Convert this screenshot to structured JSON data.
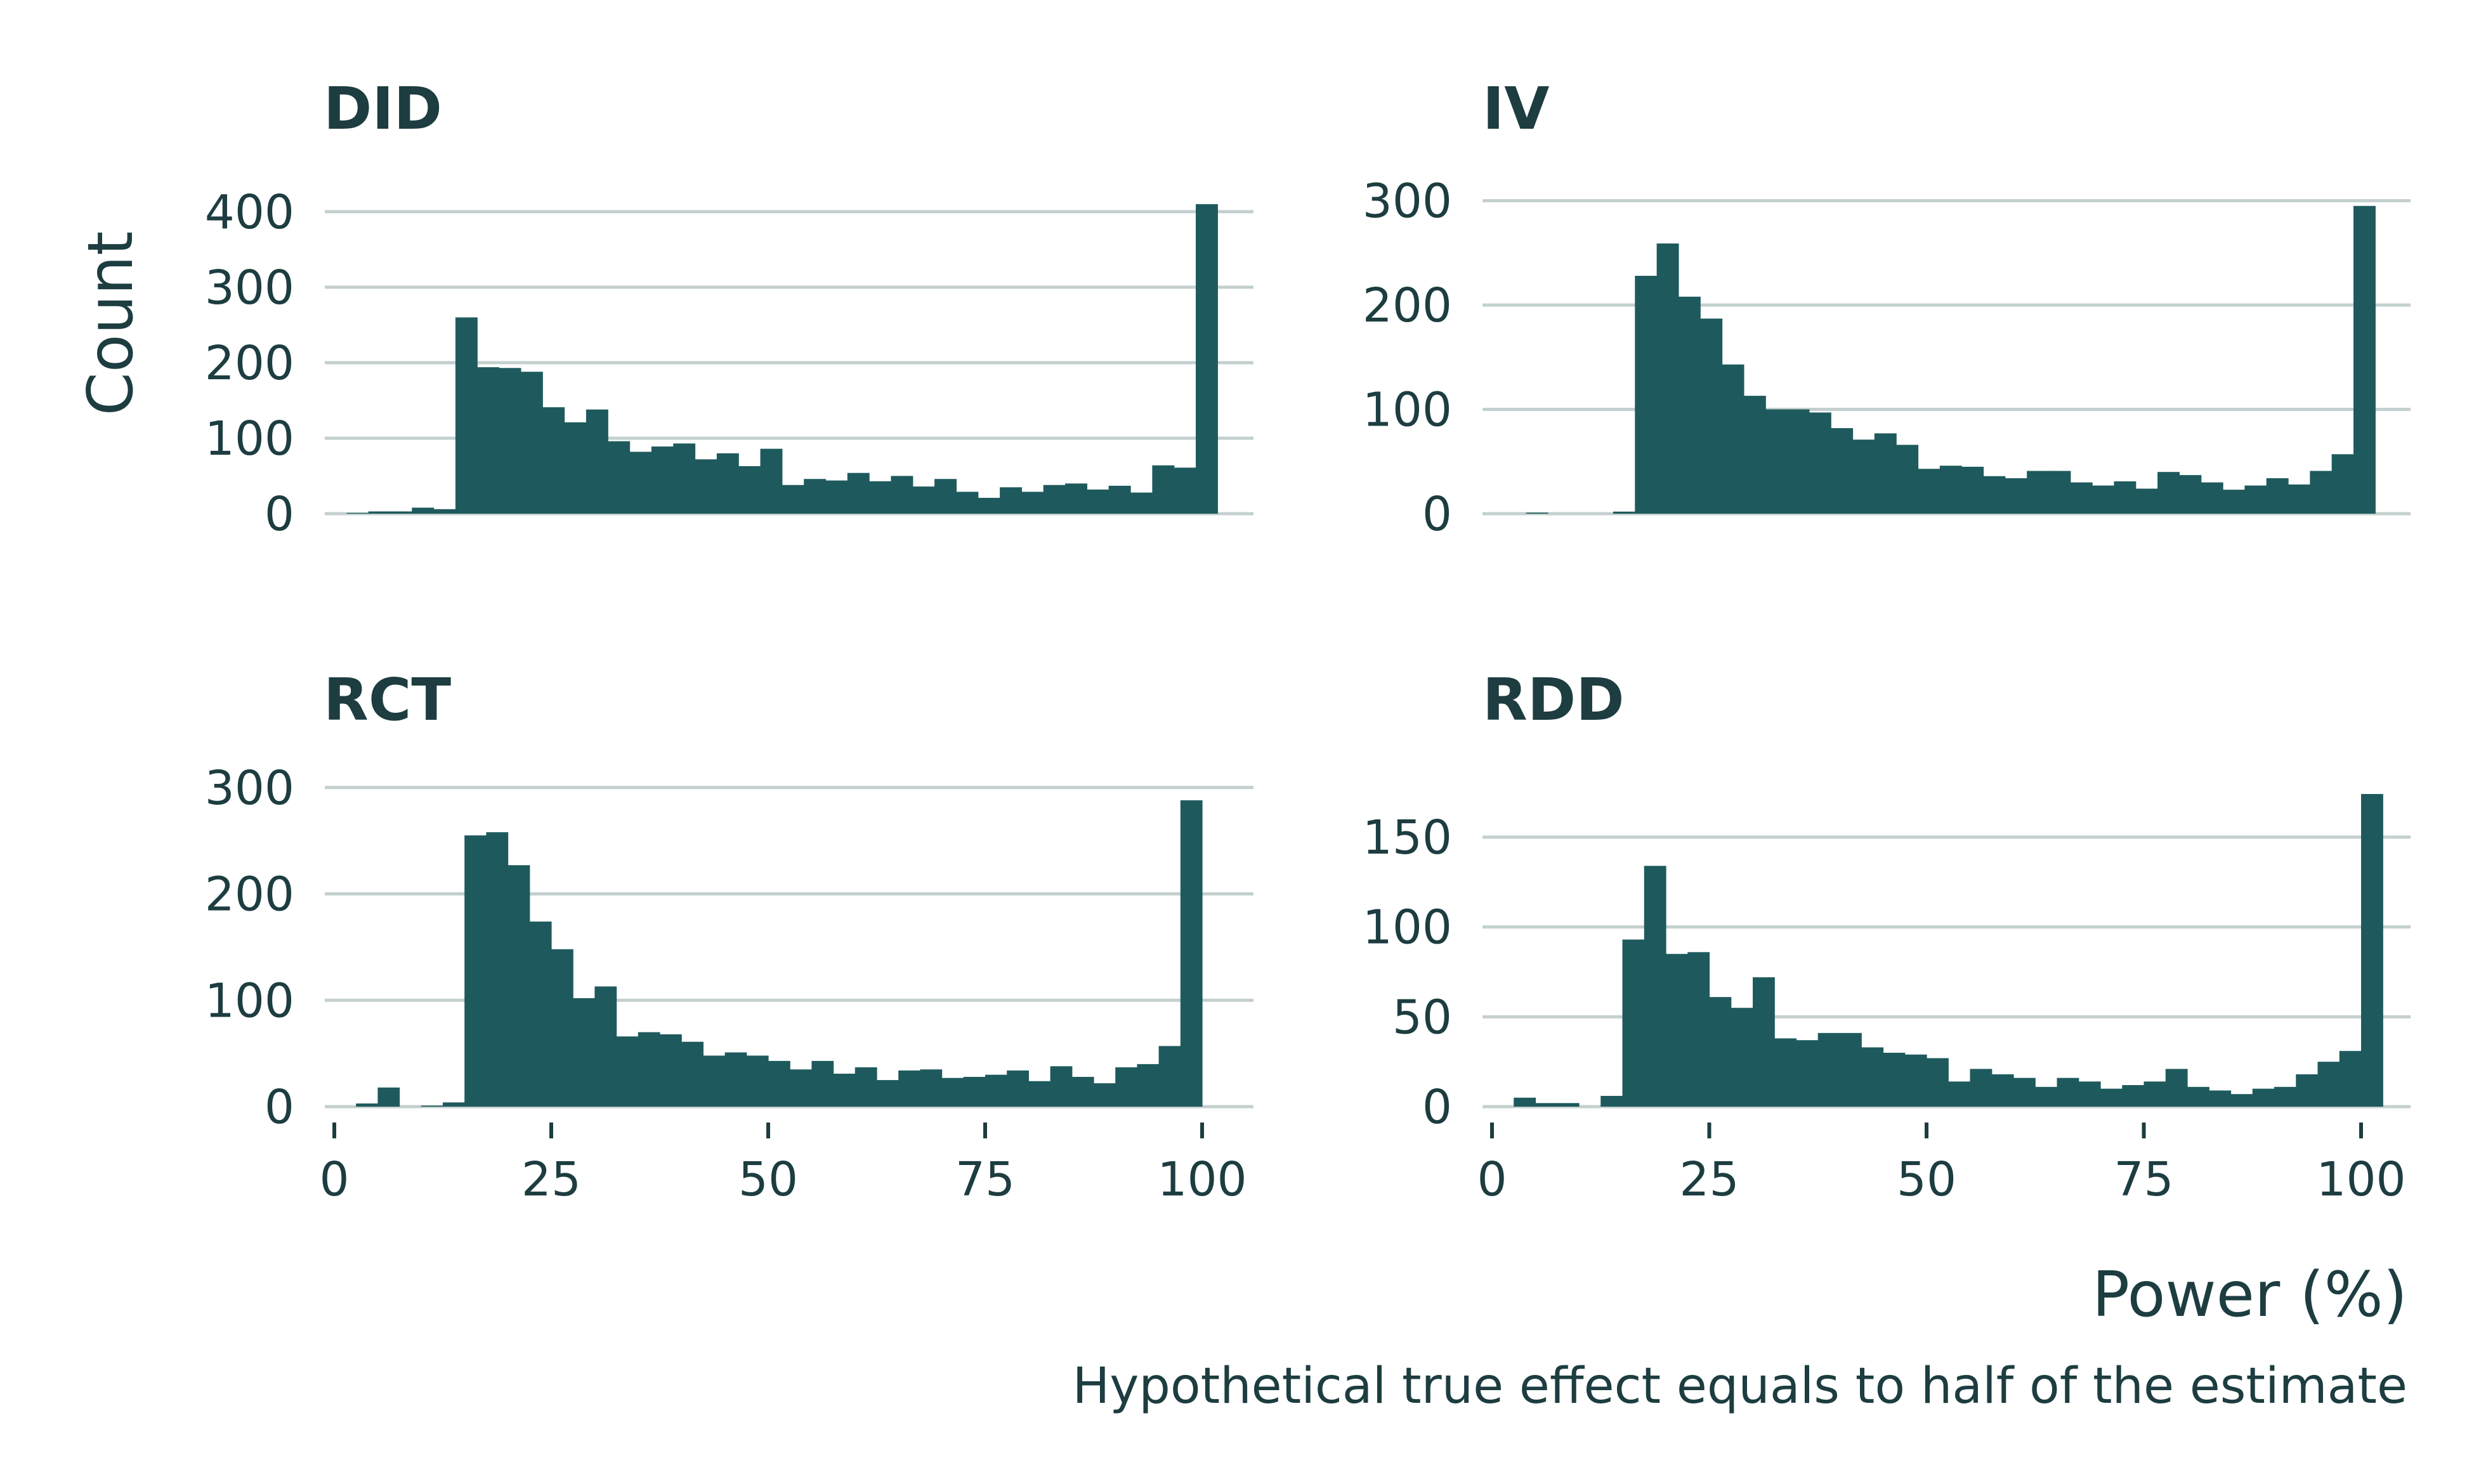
{
  "figure": {
    "ylabel": "Count",
    "xlabel": "Power (%)",
    "caption": "Hypothetical true effect equals to half of the estimate"
  },
  "chart_data": [
    {
      "type": "bar",
      "title": "DID",
      "ylabel": "Count",
      "xlabel": "Power (%)",
      "grid": true,
      "bin_width": 2.5,
      "bin_start": 0,
      "xlim": [
        0,
        100
      ],
      "xticks": [
        0,
        25,
        50,
        75,
        100
      ],
      "ylim": [
        0,
        420
      ],
      "yticks": [
        0,
        100,
        200,
        300,
        400
      ],
      "x_tick_labels_shown": false,
      "values": [
        0,
        1,
        3,
        3,
        8,
        6,
        260,
        194,
        193,
        188,
        141,
        121,
        138,
        96,
        82,
        89,
        93,
        72,
        80,
        63,
        86,
        38,
        46,
        44,
        54,
        43,
        50,
        36,
        46,
        29,
        21,
        35,
        29,
        38,
        40,
        32,
        37,
        28,
        64,
        61,
        410
      ]
    },
    {
      "type": "bar",
      "title": "IV",
      "grid": true,
      "bin_width": 2.5,
      "bin_start": 0,
      "xlim": [
        0,
        100
      ],
      "xticks": [
        0,
        25,
        50,
        75,
        100
      ],
      "ylim": [
        0,
        310
      ],
      "yticks": [
        0,
        100,
        200,
        300
      ],
      "x_tick_labels_shown": false,
      "values": [
        0,
        0,
        1,
        0,
        0,
        0,
        2,
        228,
        259,
        208,
        187,
        143,
        113,
        100,
        100,
        97,
        82,
        71,
        77,
        66,
        43,
        46,
        45,
        36,
        34,
        41,
        41,
        30,
        27,
        31,
        24,
        40,
        37,
        30,
        23,
        27,
        34,
        28,
        41,
        57,
        295
      ]
    },
    {
      "type": "bar",
      "title": "RCT",
      "grid": true,
      "bin_width": 2.5,
      "bin_start": 0,
      "xlim": [
        0,
        100
      ],
      "xticks": [
        0,
        25,
        50,
        75,
        100
      ],
      "ylim": [
        0,
        310
      ],
      "yticks": [
        0,
        100,
        200,
        300
      ],
      "values": [
        0,
        3,
        18,
        0,
        1,
        4,
        255,
        258,
        227,
        174,
        148,
        102,
        113,
        66,
        70,
        68,
        61,
        48,
        51,
        48,
        43,
        35,
        43,
        31,
        37,
        25,
        34,
        35,
        27,
        28,
        30,
        34,
        24,
        38,
        28,
        22,
        37,
        40,
        57,
        288
      ]
    },
    {
      "type": "bar",
      "title": "RDD",
      "grid": true,
      "bin_width": 2.5,
      "bin_start": 0,
      "xlim": [
        0,
        100
      ],
      "xticks": [
        0,
        25,
        50,
        75,
        100
      ],
      "ylim": [
        0,
        180
      ],
      "yticks": [
        0,
        50,
        100,
        150
      ],
      "values": [
        0,
        5,
        2,
        2,
        0,
        6,
        93,
        134,
        85,
        86,
        61,
        55,
        72,
        38,
        37,
        41,
        41,
        33,
        30,
        29,
        27,
        14,
        21,
        18,
        16,
        11,
        16,
        14,
        10,
        12,
        14,
        21,
        11,
        9,
        7,
        10,
        11,
        18,
        25,
        31,
        174
      ]
    }
  ]
}
